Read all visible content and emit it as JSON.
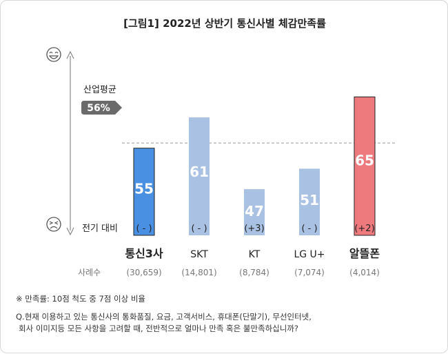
{
  "chart_data": {
    "type": "bar",
    "title": "[그림1] 2022년 상반기 통신사별 체감만족률",
    "categories": [
      "통신3사",
      "SKT",
      "KT",
      "LG U+",
      "알뜰폰"
    ],
    "values": [
      55,
      61,
      47,
      51,
      65
    ],
    "change_label": "전기 대비",
    "changes": [
      "( - )",
      "( - )",
      "(+3)",
      "( - )",
      "(+2)"
    ],
    "sample_label": "사례수",
    "sample_sizes": [
      "(30,659)",
      "(14,801)",
      "(8,784)",
      "(7,074)",
      "(4,014)"
    ],
    "average": {
      "label": "산업평균",
      "value": 56,
      "value_text": "56%"
    },
    "ylim": [
      38,
      73
    ],
    "bar_colors": [
      "#4a90e2",
      "#a9c1e3",
      "#a9c1e3",
      "#a9c1e3",
      "#ee7a7e"
    ],
    "highlight_colors": [
      "#4a90e2",
      "#ee7a7e"
    ],
    "axis_top_icon": "smiling-face-icon",
    "axis_bottom_icon": "frowning-face-icon"
  },
  "notes": {
    "definition": "※ 만족률: 10점 척도 중 7점 이상 비율",
    "question_line1": "Q.현재 이용하고 있는 통신사의 통화품질, 요금, 고객서비스, 휴대폰(단말기), 무선인터넷,",
    "question_line2": "회사 이미지등 모든 사항을 고려할 때, 전반적으로 얼마나 만족 혹은 불만족하십니까?"
  }
}
